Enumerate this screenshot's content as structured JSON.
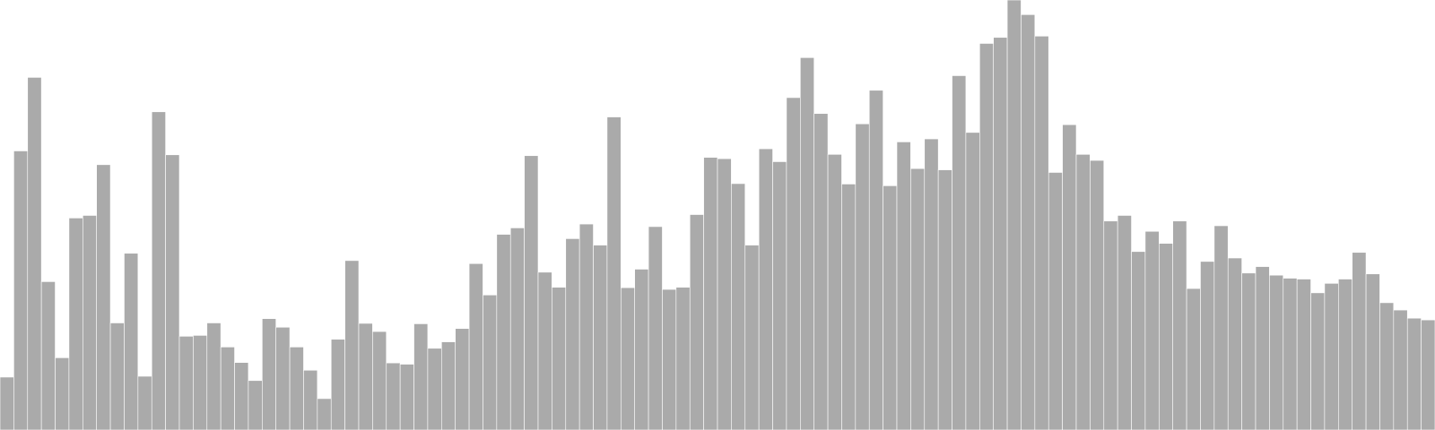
{
  "chart_data": {
    "type": "bar",
    "title": "",
    "xlabel": "",
    "ylabel": "",
    "ylim": [
      0,
      100
    ],
    "grid": false,
    "legend": "none",
    "colors": {
      "bar_fill": "#aaaaaa",
      "bar_edge": "#ffffff",
      "background": "#ffffff"
    },
    "values": [
      12.3,
      64.9,
      82.0,
      34.5,
      16.8,
      49.3,
      49.9,
      61.7,
      24.9,
      41.1,
      12.5,
      74.0,
      64.0,
      21.8,
      22.0,
      24.9,
      19.3,
      15.7,
      11.5,
      25.9,
      23.9,
      19.3,
      13.9,
      7.3,
      21.1,
      39.4,
      24.8,
      22.9,
      15.6,
      15.3,
      24.7,
      19.0,
      20.5,
      23.6,
      38.7,
      31.4,
      45.5,
      47.0,
      63.8,
      36.7,
      33.2,
      44.5,
      47.9,
      43.0,
      72.8,
      33.1,
      37.4,
      47.3,
      32.7,
      33.2,
      50.1,
      63.4,
      63.1,
      57.3,
      43.0,
      65.4,
      62.4,
      77.3,
      86.6,
      73.6,
      64.1,
      57.2,
      71.2,
      79.0,
      56.8,
      67.0,
      60.8,
      67.7,
      60.5,
      82.4,
      69.2,
      89.9,
      91.3,
      100.0,
      96.6,
      91.6,
      59.9,
      71.0,
      64.1,
      62.7,
      48.6,
      49.9,
      41.5,
      46.2,
      43.4,
      48.6,
      32.9,
      39.2,
      47.5,
      40.0,
      36.5,
      38.0,
      36.0,
      35.3,
      35.1,
      31.9,
      34.1,
      35.1,
      41.3,
      36.3,
      29.6,
      27.9,
      26.0,
      25.6
    ]
  }
}
